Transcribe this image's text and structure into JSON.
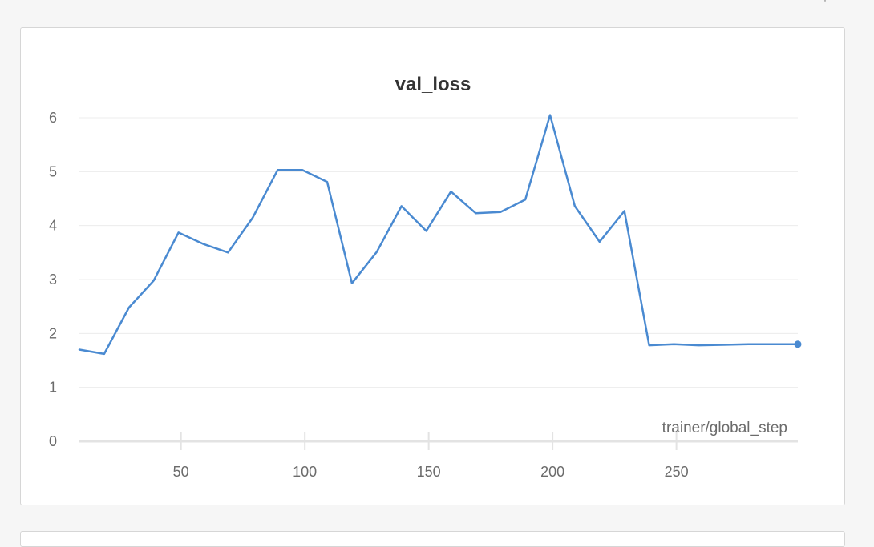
{
  "chart_data": {
    "type": "line",
    "title": "val_loss",
    "xlabel": "trainer/global_step",
    "ylabel": "",
    "xlim": [
      9,
      299
    ],
    "ylim": [
      0,
      6
    ],
    "x_ticks": [
      50,
      100,
      150,
      200,
      250
    ],
    "y_ticks": [
      0,
      1,
      2,
      3,
      4,
      5,
      6
    ],
    "grid": true,
    "line_color": "#4a8ad1",
    "series": [
      {
        "x": [
          9,
          19,
          29,
          39,
          49,
          59,
          69,
          79,
          89,
          99,
          109,
          119,
          129,
          139,
          149,
          159,
          169,
          179,
          189,
          199,
          209,
          219,
          229,
          239,
          249,
          259,
          269,
          279,
          289,
          299
        ],
        "values": [
          1.7,
          1.62,
          2.48,
          2.98,
          3.87,
          3.66,
          3.5,
          4.15,
          5.03,
          5.03,
          4.81,
          2.93,
          3.51,
          4.36,
          3.9,
          4.63,
          4.23,
          4.25,
          4.48,
          6.05,
          4.36,
          3.7,
          4.27,
          1.78,
          1.8,
          1.78,
          1.79,
          1.8,
          1.8,
          1.8
        ]
      }
    ]
  }
}
